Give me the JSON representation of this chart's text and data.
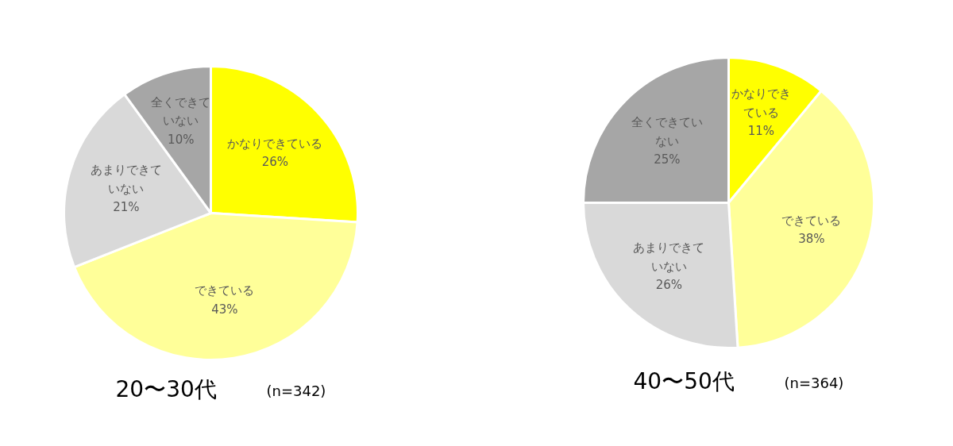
{
  "chart_data": [
    {
      "type": "pie",
      "title": "20〜30代",
      "subtitle": "(n=342)",
      "categories": [
        "かなりできている",
        "できている",
        "あまりできていない",
        "全くできていない"
      ],
      "values": [
        26,
        43,
        21,
        10
      ],
      "value_labels": [
        "26%",
        "43%",
        "21%",
        "10%"
      ],
      "colors": [
        "#ffff00",
        "#ffff99",
        "#d9d9d9",
        "#a6a6a6"
      ]
    },
    {
      "type": "pie",
      "title": "40〜50代",
      "subtitle": "(n=364)",
      "categories": [
        "かなりできている",
        "できている",
        "あまりできていない",
        "全くできていない"
      ],
      "values": [
        11,
        38,
        26,
        25
      ],
      "value_labels": [
        "11%",
        "38%",
        "26%",
        "25%"
      ],
      "colors": [
        "#ffff00",
        "#ffff99",
        "#d9d9d9",
        "#a6a6a6"
      ]
    }
  ]
}
